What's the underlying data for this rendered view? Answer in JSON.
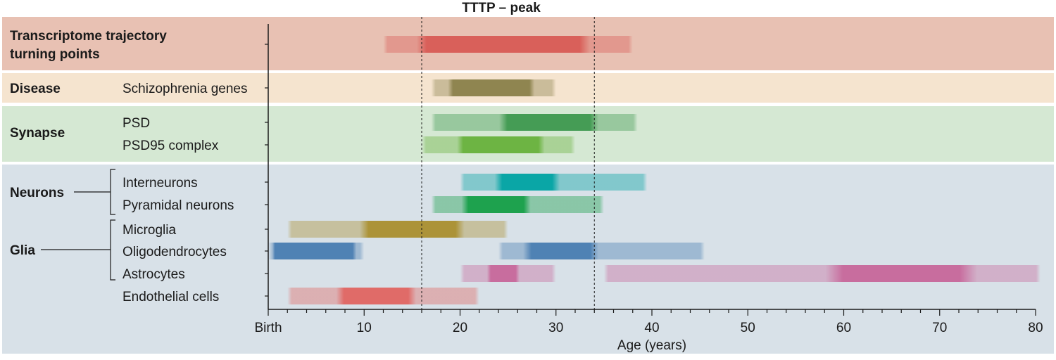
{
  "chart_data": {
    "type": "timeline",
    "title": "TTTP – peak",
    "xlabel": "Age (years)",
    "xlim": [
      0,
      80
    ],
    "x_ticks": [
      {
        "value": 0,
        "label": "Birth"
      },
      {
        "value": 10,
        "label": "10"
      },
      {
        "value": 20,
        "label": "20"
      },
      {
        "value": 30,
        "label": "30"
      },
      {
        "value": 40,
        "label": "40"
      },
      {
        "value": 50,
        "label": "50"
      },
      {
        "value": 60,
        "label": "60"
      },
      {
        "value": 70,
        "label": "70"
      },
      {
        "value": 80,
        "label": "80"
      }
    ],
    "peak_lines": [
      16,
      34
    ],
    "groups": [
      {
        "title": "Transcriptome trajectory turning points",
        "title_lines": [
          "Transcriptome trajectory",
          "turning points"
        ],
        "color": "#e8c1b3",
        "rows": [
          {
            "label": "",
            "color": "#d9605a",
            "bars": [
              {
                "range": [
                  12,
                  38
                ],
                "core": [
                  16,
                  33
                ]
              }
            ]
          }
        ]
      },
      {
        "title": "Disease",
        "color": "#f5e4cf",
        "rows": [
          {
            "label": "Schizophrenia genes",
            "color": "#8f8550",
            "bars": [
              {
                "range": [
                  17,
                  30
                ],
                "core": [
                  19,
                  27.5
                ]
              }
            ]
          }
        ]
      },
      {
        "title": "Synapse",
        "color": "#d5e8d3",
        "rows": [
          {
            "label": "PSD",
            "color": "#459c55",
            "bars": [
              {
                "range": [
                  17,
                  38.5
                ],
                "core": [
                  24.5,
                  34
                ]
              }
            ]
          },
          {
            "label": "PSD95 complex",
            "color": "#6db443",
            "bars": [
              {
                "range": [
                  16,
                  32
                ],
                "core": [
                  20,
                  28.5
                ]
              }
            ]
          }
        ]
      },
      {
        "title": "Neurons",
        "color": "#d8e1e8",
        "rows": [
          {
            "label": "Interneurons",
            "color": "#0aa6a6",
            "bars": [
              {
                "range": [
                  20,
                  39.5
                ],
                "core": [
                  24,
                  30
                ]
              }
            ]
          },
          {
            "label": "Pyramidal neurons",
            "color": "#1ea24e",
            "bars": [
              {
                "range": [
                  17,
                  35
                ],
                "core": [
                  20.5,
                  27
                ]
              }
            ]
          }
        ]
      },
      {
        "title": "Glia",
        "color": "#d8e1e8",
        "rows": [
          {
            "label": "Microglia",
            "color": "#ac9338",
            "bars": [
              {
                "range": [
                  2,
                  25
                ],
                "core": [
                  10,
                  20
                ]
              }
            ]
          },
          {
            "label": "Oligodendrocytes",
            "color": "#4f82b4",
            "bars": [
              {
                "range": [
                  0,
                  10
                ],
                "core": [
                  0.5,
                  9
                ]
              },
              {
                "range": [
                  24,
                  45.5
                ],
                "core": [
                  27,
                  34
                ]
              }
            ]
          },
          {
            "label": "Astrocytes",
            "color": "#c86d9e",
            "bars": [
              {
                "range": [
                  20,
                  30
                ],
                "core": [
                  23,
                  26
                ]
              },
              {
                "range": [
                  35,
                  80.5
                ],
                "core": [
                  59,
                  73
                ]
              }
            ]
          }
        ]
      },
      {
        "title": "",
        "color": "#d8e1e8",
        "rows": [
          {
            "label": "Endothelial cells",
            "color": "#e06b68",
            "bars": [
              {
                "range": [
                  2,
                  22
                ],
                "core": [
                  7.5,
                  15
                ]
              }
            ]
          }
        ]
      }
    ]
  }
}
